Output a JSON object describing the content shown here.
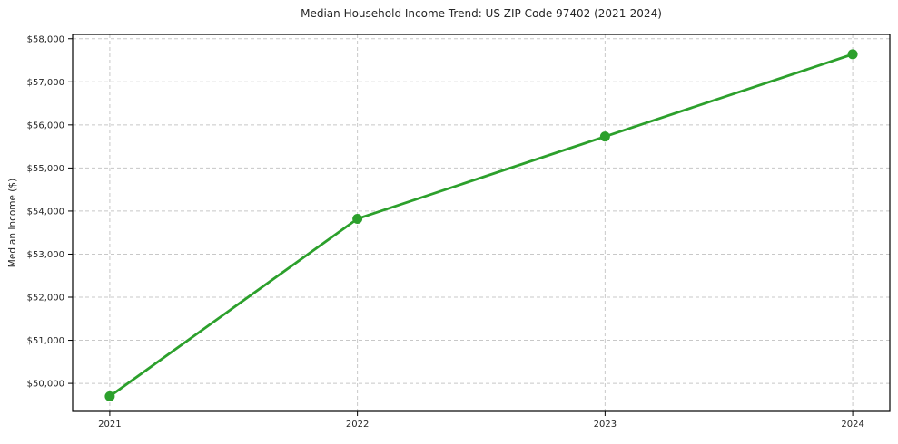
{
  "chart": {
    "title": "Median Household Income Trend: US ZIP Code 97402 (2021-2024)",
    "ylabel": "Median Income ($)"
  },
  "chart_data": {
    "type": "line",
    "title": "Median Household Income Trend: US ZIP Code 97402 (2021-2024)",
    "xlabel": "",
    "ylabel": "Median Income ($)",
    "x": [
      2021,
      2022,
      2023,
      2024
    ],
    "values": [
      49700,
      53820,
      55730,
      57640
    ],
    "x_tick_labels": [
      "2021",
      "2022",
      "2023",
      "2024"
    ],
    "y_ticks": [
      50000,
      51000,
      52000,
      53000,
      54000,
      55000,
      56000,
      57000,
      58000
    ],
    "y_tick_labels": [
      "$50,000",
      "$51,000",
      "$52,000",
      "$53,000",
      "$54,000",
      "$55,000",
      "$56,000",
      "$57,000",
      "$58,000"
    ],
    "xlim": [
      2020.85,
      2024.15
    ],
    "ylim": [
      49350,
      58100
    ],
    "grid": true,
    "grid_style": "dashed",
    "legend": "none",
    "line_color": "#2ca02c",
    "marker_color": "#2ca02c",
    "marker": "circle",
    "grid_color": "#c8c8c8",
    "axis_color": "#000000",
    "text_color": "#262626",
    "background": "#ffffff"
  }
}
